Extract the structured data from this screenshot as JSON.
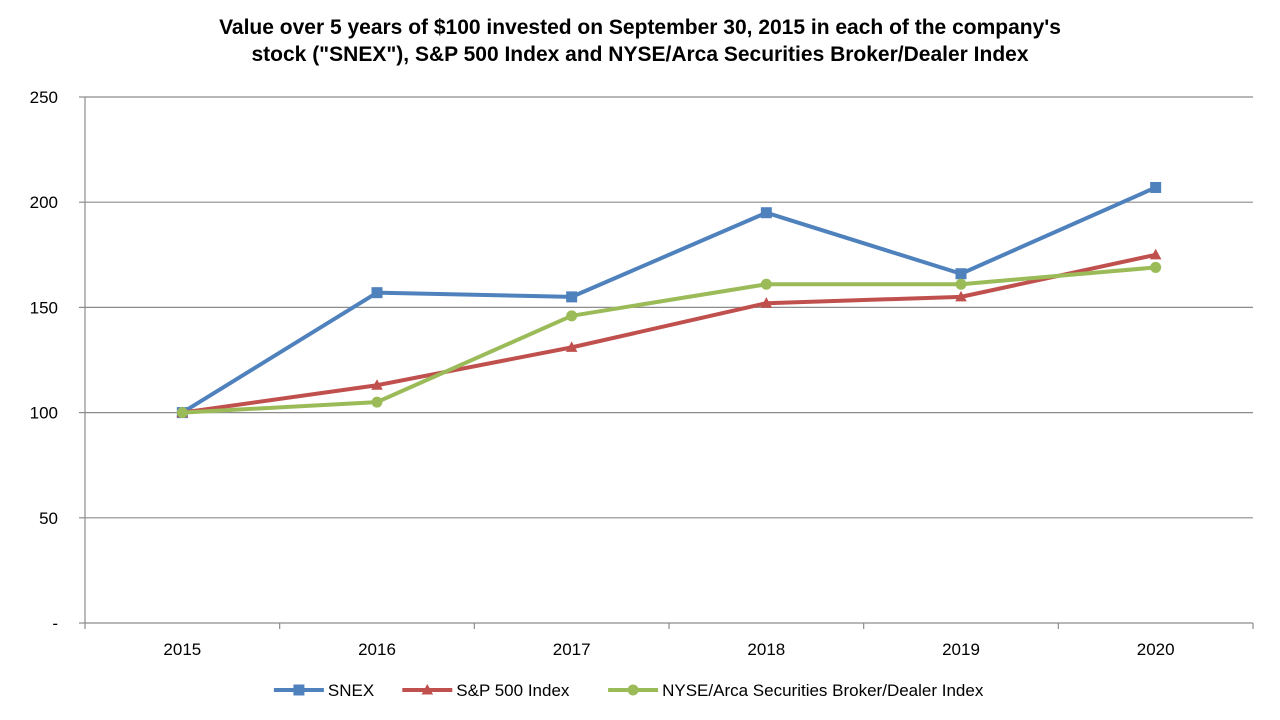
{
  "chart_data": {
    "type": "line",
    "title_lines": [
      "Value over 5 years of $100 invested on September 30, 2015 in each of the company's",
      "stock (\"SNEX\"), S&P 500 Index and NYSE/Arca Securities Broker/Dealer Index"
    ],
    "categories": [
      "2015",
      "2016",
      "2017",
      "2018",
      "2019",
      "2020"
    ],
    "y_ticks": [
      {
        "value": 0,
        "label": "-"
      },
      {
        "value": 50,
        "label": "50"
      },
      {
        "value": 100,
        "label": "100"
      },
      {
        "value": 150,
        "label": "150"
      },
      {
        "value": 200,
        "label": "200"
      },
      {
        "value": 250,
        "label": "250"
      }
    ],
    "ylim": [
      0,
      250
    ],
    "grid": true,
    "legend_position": "bottom",
    "series": [
      {
        "name": "SNEX",
        "color": "#4F81BD",
        "marker": "square",
        "values": [
          100,
          157,
          155,
          195,
          166,
          207
        ]
      },
      {
        "name": "S&P 500 Index",
        "color": "#C0504D",
        "marker": "triangle",
        "values": [
          100,
          113,
          131,
          152,
          155,
          175
        ]
      },
      {
        "name": "NYSE/Arca Securities Broker/Dealer Index",
        "color": "#9BBB59",
        "marker": "circle",
        "values": [
          100,
          105,
          146,
          161,
          161,
          169
        ]
      }
    ]
  }
}
